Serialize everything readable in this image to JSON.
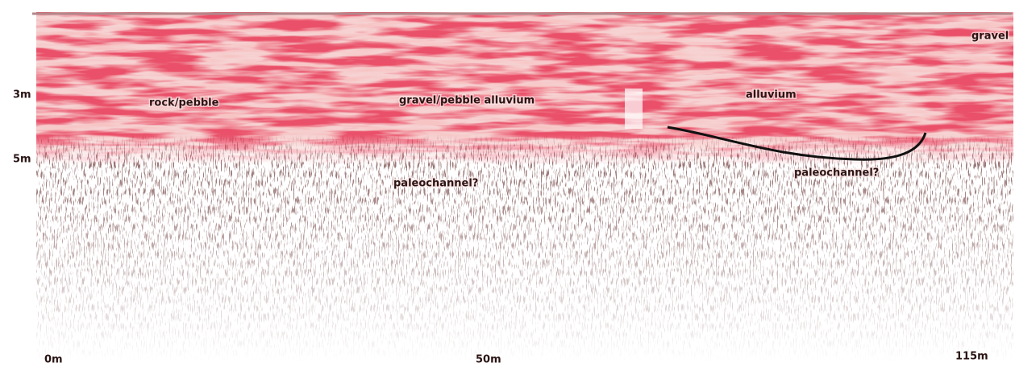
{
  "depth_labels": [
    "3m",
    "5m"
  ],
  "distance_labels": [
    "0m",
    "50m",
    "115m"
  ],
  "annotations": [
    "rock/pebble",
    "gravel/pebble alluvium",
    "alluvium",
    "paleochannel?",
    "paleochannel?",
    "gravel"
  ]
}
